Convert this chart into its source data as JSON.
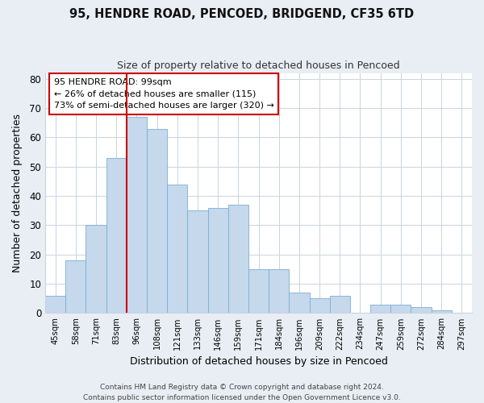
{
  "title": "95, HENDRE ROAD, PENCOED, BRIDGEND, CF35 6TD",
  "subtitle": "Size of property relative to detached houses in Pencoed",
  "xlabel": "Distribution of detached houses by size in Pencoed",
  "ylabel": "Number of detached properties",
  "categories": [
    "45sqm",
    "58sqm",
    "71sqm",
    "83sqm",
    "96sqm",
    "108sqm",
    "121sqm",
    "133sqm",
    "146sqm",
    "159sqm",
    "171sqm",
    "184sqm",
    "196sqm",
    "209sqm",
    "222sqm",
    "234sqm",
    "247sqm",
    "259sqm",
    "272sqm",
    "284sqm",
    "297sqm"
  ],
  "values": [
    6,
    18,
    30,
    53,
    67,
    63,
    44,
    35,
    36,
    37,
    15,
    15,
    7,
    5,
    6,
    0,
    3,
    3,
    2,
    1,
    0
  ],
  "bar_color": "#c5d8ec",
  "bar_edge_color": "#7badd4",
  "highlight_color": "#cc0000",
  "highlight_bar_index": 4,
  "annotation_title": "95 HENDRE ROAD: 99sqm",
  "annotation_line1": "← 26% of detached houses are smaller (115)",
  "annotation_line2": "73% of semi-detached houses are larger (320) →",
  "ylim": [
    0,
    82
  ],
  "yticks": [
    0,
    10,
    20,
    30,
    40,
    50,
    60,
    70,
    80
  ],
  "footer_line1": "Contains HM Land Registry data © Crown copyright and database right 2024.",
  "footer_line2": "Contains public sector information licensed under the Open Government Licence v3.0.",
  "background_color": "#e8eef4",
  "plot_background": "#ffffff"
}
